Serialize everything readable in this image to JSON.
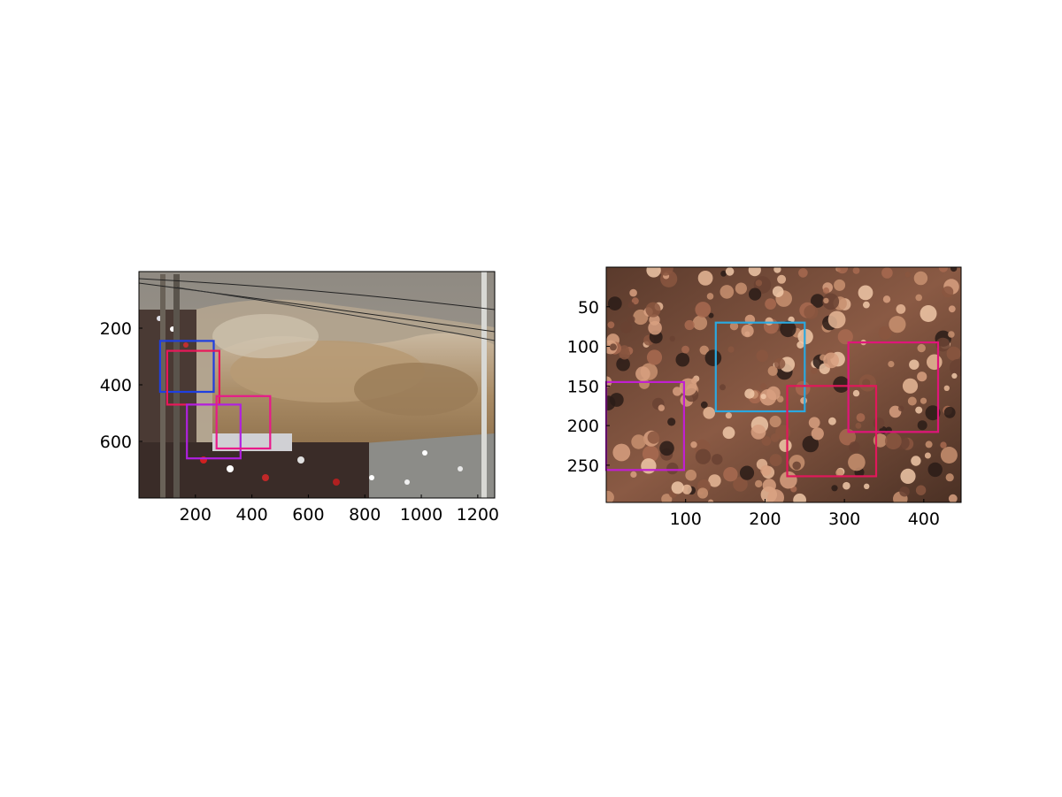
{
  "chart_data": [
    {
      "type": "image",
      "image_description": "tidal bore wave crashing over a crowd of spectators",
      "xlim": [
        0,
        1260
      ],
      "ylim": [
        0,
        800
      ],
      "x_ticks": [
        200,
        400,
        600,
        800,
        1000,
        1200
      ],
      "y_ticks": [
        200,
        400,
        600
      ],
      "boxes": [
        {
          "x": [
            75,
            265
          ],
          "y": [
            245,
            425
          ],
          "color": "#1f3fe0"
        },
        {
          "x": [
            100,
            285
          ],
          "y": [
            280,
            470
          ],
          "color": "#e8185a"
        },
        {
          "x": [
            170,
            360
          ],
          "y": [
            470,
            660
          ],
          "color": "#b020e0"
        },
        {
          "x": [
            275,
            465
          ],
          "y": [
            440,
            625
          ],
          "color": "#e81a8a"
        }
      ]
    },
    {
      "type": "image",
      "image_description": "dense crowd viewed from above",
      "xlim": [
        0,
        447
      ],
      "ylim": [
        0,
        297
      ],
      "x_ticks": [
        100,
        200,
        300,
        400
      ],
      "y_ticks": [
        50,
        100,
        150,
        200,
        250
      ],
      "boxes": [
        {
          "x": [
            138,
            250
          ],
          "y": [
            70,
            182
          ],
          "color": "#2aa8e0"
        },
        {
          "x": [
            228,
            340
          ],
          "y": [
            150,
            264
          ],
          "color": "#e0185a"
        },
        {
          "x": [
            305,
            418
          ],
          "y": [
            95,
            208
          ],
          "color": "#e0157a"
        },
        {
          "x": [
            0,
            98
          ],
          "y": [
            145,
            256
          ],
          "color": "#c020d0"
        }
      ]
    }
  ]
}
